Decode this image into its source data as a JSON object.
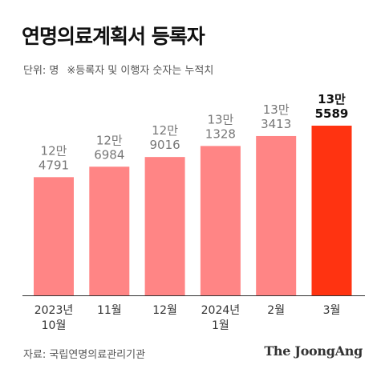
{
  "title": "연명의료계획서 등록자",
  "subtitle": {
    "unit": "단위: 명",
    "note": "※등록자 및 이행자 숫자는 누적치"
  },
  "source": "자료: 국립연명의료관리기관",
  "brand": "The JoongAng",
  "colors": {
    "bar": "#FF8585",
    "highlight": "#FF3311",
    "value_label": "#777777",
    "value_label_highlight": "#111111",
    "axis": "#333333",
    "text": "#333333"
  },
  "chart_data": {
    "type": "bar",
    "categories": [
      [
        "2023년",
        "10월"
      ],
      [
        "11월"
      ],
      [
        "12월"
      ],
      [
        "2024년",
        "1월"
      ],
      [
        "2월"
      ],
      [
        "3월"
      ]
    ],
    "values": [
      124791,
      126984,
      129016,
      131328,
      133413,
      135589
    ],
    "value_labels": [
      [
        "12만",
        "4791"
      ],
      [
        "12만",
        "6984"
      ],
      [
        "12만",
        "9016"
      ],
      [
        "13만",
        "1328"
      ],
      [
        "13만",
        "3413"
      ],
      [
        "13만",
        "5589"
      ]
    ],
    "highlight_index": 5,
    "grid": false
  }
}
